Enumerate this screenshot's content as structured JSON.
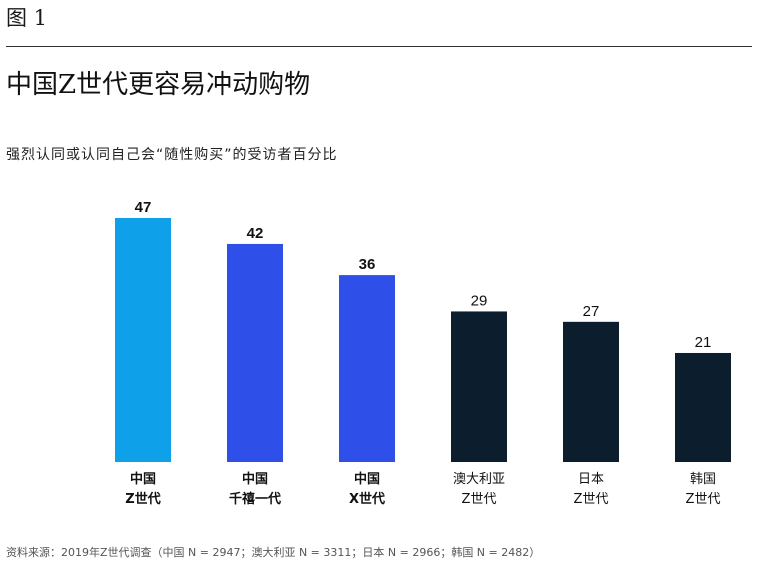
{
  "figure_label": "图 1",
  "chart_data": {
    "type": "bar",
    "title": "中国Z世代更容易冲动购物",
    "subtitle": "强烈认同或认同自己会“随性购买”的受访者百分比",
    "categories": [
      [
        "中国",
        "Z世代"
      ],
      [
        "中国",
        "千禧一代"
      ],
      [
        "中国",
        "X世代"
      ],
      [
        "澳大利亚",
        "Z世代"
      ],
      [
        "日本",
        "Z世代"
      ],
      [
        "韩国",
        "Z世代"
      ]
    ],
    "values": [
      47,
      42,
      36,
      29,
      27,
      21
    ],
    "bar_colors": [
      "#0fa0ea",
      "#2e4fe8",
      "#2e4fe8",
      "#0c1d2e",
      "#0c1d2e",
      "#0c1d2e"
    ],
    "bold_labels": [
      true,
      true,
      true,
      false,
      false,
      false
    ],
    "ylim": [
      0,
      47
    ],
    "xlabel": "",
    "ylabel": ""
  },
  "source": "资料来源：2019年Z世代调查（中国 N = 2947；澳大利亚 N = 3311；日本 N = 2966；韩国 N = 2482）"
}
